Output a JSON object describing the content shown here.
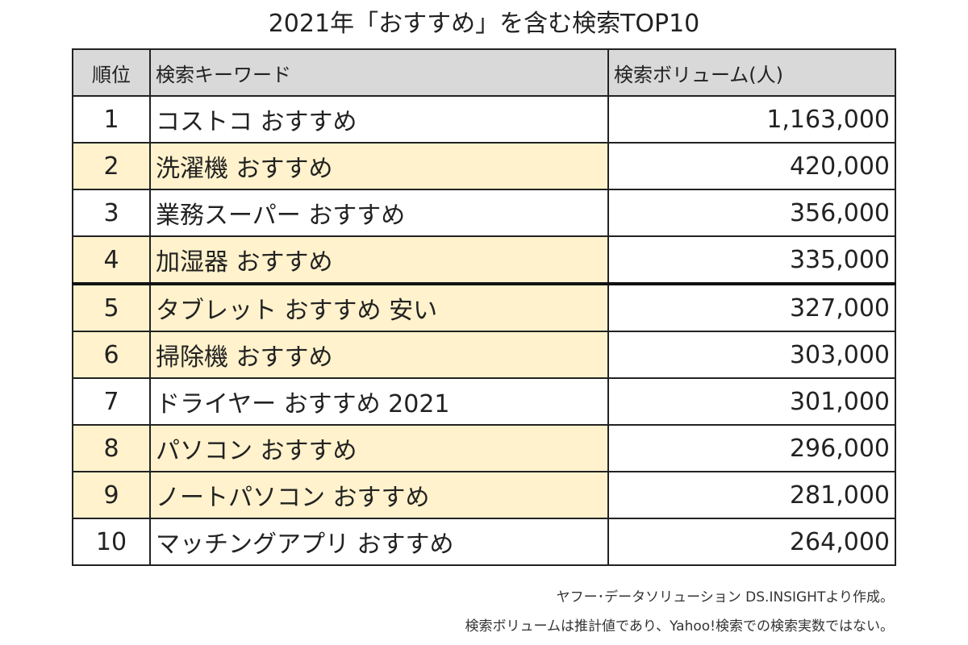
{
  "title": "2021年「おすすめ」を含む検索TOP10",
  "table": {
    "headers": [
      "順位",
      "検索キーワード",
      "検索ボリューム(人)"
    ],
    "rows": [
      {
        "rank": "1",
        "keyword": "コストコ おすすめ",
        "volume": "1,163,000",
        "highlight": false
      },
      {
        "rank": "2",
        "keyword": "洗濯機 おすすめ",
        "volume": "420,000",
        "highlight": true
      },
      {
        "rank": "3",
        "keyword": "業務スーパー おすすめ",
        "volume": "356,000",
        "highlight": false
      },
      {
        "rank": "4",
        "keyword": "加湿器 おすすめ",
        "volume": "335,000",
        "highlight": true
      },
      {
        "rank": "5",
        "keyword": "タブレット おすすめ 安い",
        "volume": "327,000",
        "highlight": true
      },
      {
        "rank": "6",
        "keyword": "掃除機 おすすめ",
        "volume": "303,000",
        "highlight": true
      },
      {
        "rank": "7",
        "keyword": "ドライヤー おすすめ 2021",
        "volume": "301,000",
        "highlight": false
      },
      {
        "rank": "8",
        "keyword": "パソコン おすすめ",
        "volume": "296,000",
        "highlight": true
      },
      {
        "rank": "9",
        "keyword": "ノートパソコン おすすめ",
        "volume": "281,000",
        "highlight": true
      },
      {
        "rank": "10",
        "keyword": "マッチングアプリ おすすめ",
        "volume": "264,000",
        "highlight": false
      }
    ]
  },
  "notes": [
    "ヤフー･データソリューション DS.INSIGHTより作成。",
    "検索ボリュームは推計値であり、Yahoo!検索での検索実数ではない。"
  ],
  "colors": {
    "header_bg": "#d9d9d9",
    "highlight_bg": "#fff2cc"
  }
}
